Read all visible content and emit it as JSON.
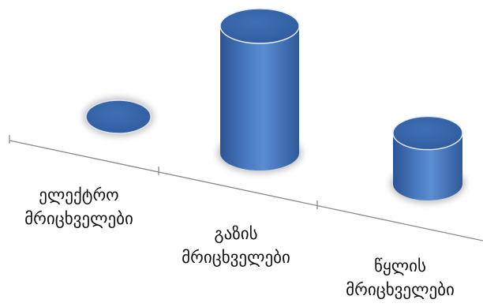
{
  "chart_data": {
    "type": "bar",
    "style": "3d-cylinder",
    "categories": [
      [
        "ელექტრო",
        "მრიცხველები"
      ],
      [
        "გაზის",
        "მრიცხველები"
      ],
      [
        "წყლის",
        "მრიცხველები"
      ]
    ],
    "series": [
      {
        "values": [
          0,
          100,
          40
        ]
      }
    ],
    "axes": {
      "y_visible": false,
      "gridlines": false
    },
    "colors": {
      "bar": "#3f6fb3",
      "bar_dark": "#2c5593",
      "bar_light": "#6f9bd8",
      "axis": "#8a8a8a"
    }
  }
}
